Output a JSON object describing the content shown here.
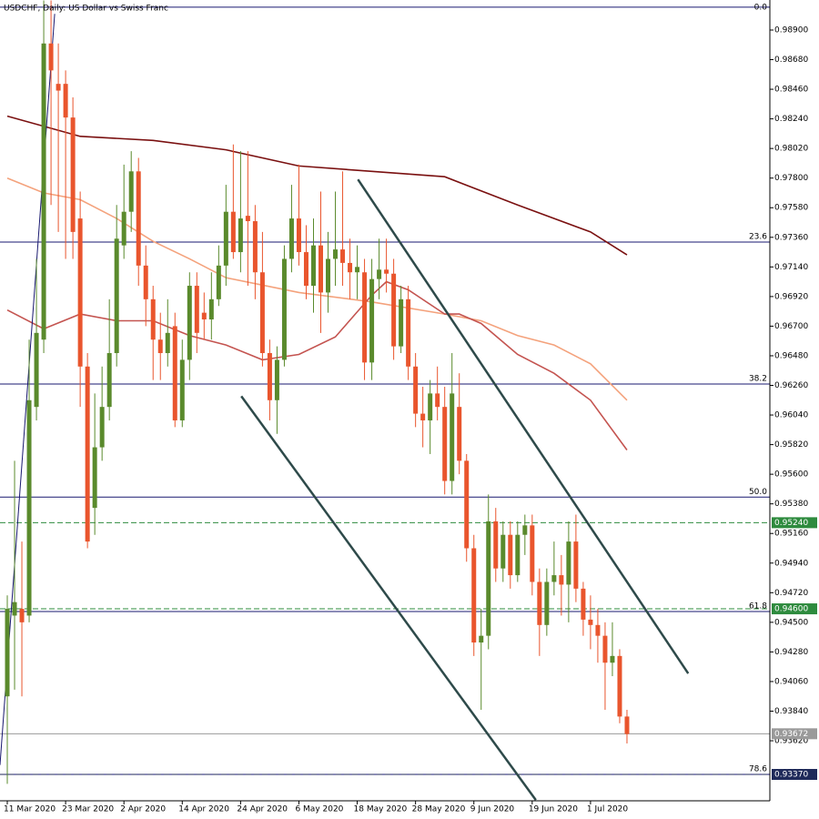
{
  "chart_data": {
    "type": "candlestick",
    "title": "USDCHF, Daily:  US Dollar vs Swiss Franc",
    "bull_color": "#5a8a2c",
    "bear_color": "#e9552d",
    "candles": {
      "open": [
        0.9395,
        0.9455,
        0.946,
        0.9455,
        0.961,
        0.966,
        0.988,
        0.985,
        0.985,
        0.9825,
        0.975,
        0.964,
        0.9535,
        0.958,
        0.961,
        0.965,
        0.973,
        0.9755,
        0.9785,
        0.9715,
        0.969,
        0.966,
        0.965,
        0.967,
        0.96,
        0.9645,
        0.97,
        0.968,
        0.9675,
        0.969,
        0.9715,
        0.9755,
        0.9725,
        0.9752,
        0.9748,
        0.971,
        0.965,
        0.9615,
        0.9645,
        0.972,
        0.975,
        0.9725,
        0.97,
        0.973,
        0.9695,
        0.972,
        0.9727,
        0.9717,
        0.971,
        0.971,
        0.9643,
        0.9705,
        0.9712,
        0.9709,
        0.9655,
        0.969,
        0.964,
        0.9605,
        0.96,
        0.962,
        0.961,
        0.9555,
        0.961,
        0.957,
        0.9505,
        0.9435,
        0.944,
        0.9525,
        0.949,
        0.9515,
        0.9485,
        0.9515,
        0.9522,
        0.948,
        0.9448,
        0.948,
        0.9485,
        0.9478,
        0.951,
        0.9475,
        0.9452,
        0.9448,
        0.944,
        0.942,
        0.9425,
        0.938
      ],
      "high": [
        0.947,
        0.957,
        0.951,
        0.966,
        0.972,
        0.9912,
        0.9912,
        0.988,
        0.986,
        0.984,
        0.977,
        0.965,
        0.962,
        0.964,
        0.969,
        0.976,
        0.979,
        0.98,
        0.9795,
        0.973,
        0.97,
        0.968,
        0.969,
        0.968,
        0.966,
        0.971,
        0.971,
        0.9695,
        0.971,
        0.973,
        0.9775,
        0.9805,
        0.98,
        0.98,
        0.976,
        0.974,
        0.966,
        0.9655,
        0.973,
        0.9775,
        0.979,
        0.9745,
        0.975,
        0.977,
        0.974,
        0.977,
        0.9785,
        0.9735,
        0.973,
        0.972,
        0.972,
        0.9735,
        0.9735,
        0.972,
        0.97,
        0.97,
        0.965,
        0.9625,
        0.963,
        0.964,
        0.9625,
        0.965,
        0.9635,
        0.9575,
        0.9515,
        0.946,
        0.9545,
        0.9535,
        0.9525,
        0.9525,
        0.9525,
        0.953,
        0.953,
        0.949,
        0.949,
        0.951,
        0.95,
        0.9525,
        0.953,
        0.948,
        0.947,
        0.946,
        0.945,
        0.945,
        0.943,
        0.9385
      ],
      "low": [
        0.933,
        0.94,
        0.9395,
        0.945,
        0.96,
        0.965,
        0.976,
        0.974,
        0.972,
        0.972,
        0.961,
        0.9505,
        0.9515,
        0.957,
        0.96,
        0.964,
        0.972,
        0.974,
        0.97,
        0.967,
        0.963,
        0.963,
        0.964,
        0.9595,
        0.9595,
        0.963,
        0.965,
        0.966,
        0.966,
        0.9685,
        0.97,
        0.972,
        0.971,
        0.97,
        0.969,
        0.964,
        0.96,
        0.959,
        0.964,
        0.971,
        0.9715,
        0.969,
        0.968,
        0.9665,
        0.968,
        0.97,
        0.97,
        0.969,
        0.969,
        0.963,
        0.963,
        0.969,
        0.9695,
        0.9645,
        0.965,
        0.963,
        0.9595,
        0.958,
        0.9575,
        0.96,
        0.9545,
        0.9545,
        0.956,
        0.9495,
        0.9425,
        0.9385,
        0.943,
        0.948,
        0.948,
        0.9475,
        0.948,
        0.95,
        0.947,
        0.9425,
        0.944,
        0.947,
        0.9455,
        0.945,
        0.9465,
        0.944,
        0.943,
        0.942,
        0.9385,
        0.941,
        0.9375,
        0.936
      ],
      "close": [
        0.946,
        0.9465,
        0.945,
        0.9615,
        0.9665,
        0.988,
        0.986,
        0.9845,
        0.9825,
        0.974,
        0.964,
        0.951,
        0.958,
        0.961,
        0.965,
        0.9735,
        0.9755,
        0.9785,
        0.9715,
        0.969,
        0.966,
        0.965,
        0.9665,
        0.96,
        0.9645,
        0.97,
        0.9665,
        0.9675,
        0.969,
        0.9715,
        0.9755,
        0.9725,
        0.975,
        0.9748,
        0.971,
        0.965,
        0.9615,
        0.9645,
        0.972,
        0.975,
        0.9725,
        0.97,
        0.973,
        0.9695,
        0.972,
        0.9727,
        0.9717,
        0.971,
        0.9714,
        0.9643,
        0.9705,
        0.9712,
        0.9709,
        0.9655,
        0.969,
        0.964,
        0.9605,
        0.96,
        0.962,
        0.961,
        0.9555,
        0.962,
        0.957,
        0.9505,
        0.9435,
        0.944,
        0.9525,
        0.949,
        0.9515,
        0.9485,
        0.9515,
        0.9522,
        0.948,
        0.9448,
        0.948,
        0.9485,
        0.9478,
        0.951,
        0.9475,
        0.9452,
        0.9448,
        0.944,
        0.942,
        0.9425,
        0.938,
        0.9367
      ]
    },
    "xlim": [
      -1,
      104.6
    ],
    "xticks": [
      {
        "value": 0,
        "label": "11 Mar 2020"
      },
      {
        "value": 8,
        "label": "23 Mar 2020"
      },
      {
        "value": 16,
        "label": "2 Apr 2020"
      },
      {
        "value": 24,
        "label": "14 Apr 2020"
      },
      {
        "value": 32,
        "label": "24 Apr 2020"
      },
      {
        "value": 40,
        "label": "6 May 2020"
      },
      {
        "value": 48,
        "label": "18 May 2020"
      },
      {
        "value": 56,
        "label": "28 May 2020"
      },
      {
        "value": 64,
        "label": "9 Jun 2020"
      },
      {
        "value": 72,
        "label": "19 Jun 2020"
      },
      {
        "value": 80,
        "label": "1 Jul 2020"
      }
    ],
    "ylim": [
      0.93174,
      0.99123
    ],
    "yticks": [
      {
        "value": 0.989,
        "label": "0.98900"
      },
      {
        "value": 0.9868,
        "label": "0.98680"
      },
      {
        "value": 0.9846,
        "label": "0.98460"
      },
      {
        "value": 0.9824,
        "label": "0.98240"
      },
      {
        "value": 0.9802,
        "label": "0.98020"
      },
      {
        "value": 0.978,
        "label": "0.97800"
      },
      {
        "value": 0.9758,
        "label": "0.97580"
      },
      {
        "value": 0.9736,
        "label": "0.97360"
      },
      {
        "value": 0.9714,
        "label": "0.97140"
      },
      {
        "value": 0.9692,
        "label": "0.96920"
      },
      {
        "value": 0.967,
        "label": "0.96700"
      },
      {
        "value": 0.9648,
        "label": "0.96480"
      },
      {
        "value": 0.9626,
        "label": "0.96260"
      },
      {
        "value": 0.9604,
        "label": "0.96040"
      },
      {
        "value": 0.9582,
        "label": "0.95820"
      },
      {
        "value": 0.956,
        "label": "0.95600"
      },
      {
        "value": 0.9538,
        "label": "0.95380"
      },
      {
        "value": 0.9516,
        "label": "0.95160"
      },
      {
        "value": 0.9494,
        "label": "0.94940"
      },
      {
        "value": 0.9472,
        "label": "0.94720"
      },
      {
        "value": 0.945,
        "label": "0.94500"
      },
      {
        "value": 0.9428,
        "label": "0.94280"
      },
      {
        "value": 0.9406,
        "label": "0.94060"
      },
      {
        "value": 0.9384,
        "label": "0.93840"
      },
      {
        "value": 0.9362,
        "label": "0.93620"
      }
    ],
    "moving_averages": [
      {
        "color": "#7a1010",
        "x": [
          0,
          10,
          20,
          30,
          40,
          50,
          60,
          70,
          80,
          85
        ],
        "values": [
          0.9826,
          0.9811,
          0.9808,
          0.9801,
          0.9789,
          0.9785,
          0.9781,
          0.976,
          0.974,
          0.9723
        ]
      },
      {
        "color": "#f4a27c",
        "x": [
          0,
          5,
          10,
          15,
          20,
          25,
          30,
          40,
          50,
          60,
          65,
          70,
          75,
          80,
          85
        ],
        "values": [
          0.978,
          0.9769,
          0.9764,
          0.975,
          0.9733,
          0.972,
          0.9706,
          0.9695,
          0.9688,
          0.9679,
          0.9674,
          0.9663,
          0.9656,
          0.9642,
          0.9615
        ]
      },
      {
        "color": "#c45450",
        "x": [
          0,
          5,
          10,
          15,
          20,
          25,
          30,
          35,
          40,
          45,
          50,
          52,
          55,
          60,
          62,
          65,
          70,
          75,
          80,
          85
        ],
        "values": [
          0.9682,
          0.9668,
          0.9679,
          0.9674,
          0.9674,
          0.9663,
          0.9656,
          0.9645,
          0.9649,
          0.9662,
          0.9693,
          0.9703,
          0.9697,
          0.9679,
          0.9679,
          0.9672,
          0.9649,
          0.9635,
          0.9615,
          0.9578
        ]
      }
    ],
    "trend_lines": [
      {
        "color": "#2e4a4a",
        "x": [
          48.1,
          93.4
        ],
        "values": [
          0.9779,
          0.9412
        ]
      },
      {
        "color": "#2e4a4a",
        "x": [
          32.1,
          72.5
        ],
        "values": [
          0.9618,
          0.9318
        ]
      },
      {
        "color": "#191970",
        "x": [
          -1,
          6.5
        ],
        "values": [
          0.9344,
          0.9902
        ]
      }
    ],
    "fib_levels": [
      {
        "label": "0.0",
        "value": 0.9907
      },
      {
        "label": "23.6",
        "value": 0.97325
      },
      {
        "label": "38.2",
        "value": 0.9627
      },
      {
        "label": "50.0",
        "value": 0.9543
      },
      {
        "label": "61.8",
        "value": 0.9458
      },
      {
        "label": "78.6",
        "value": 0.9337
      }
    ],
    "price_lines": [
      {
        "value": 0.9524,
        "label": "0.95240",
        "color": "#2e8b3e",
        "style": "dashed"
      },
      {
        "value": 0.946,
        "label": "0.94600",
        "color": "#2e8b3e",
        "style": "dashed"
      },
      {
        "value": 0.93672,
        "label": "0.93672",
        "color": "#9a9a9a",
        "style": "solid"
      },
      {
        "value": 0.9337,
        "label": "0.93370",
        "color": "#1f2a5a",
        "style": "dashed"
      }
    ]
  }
}
